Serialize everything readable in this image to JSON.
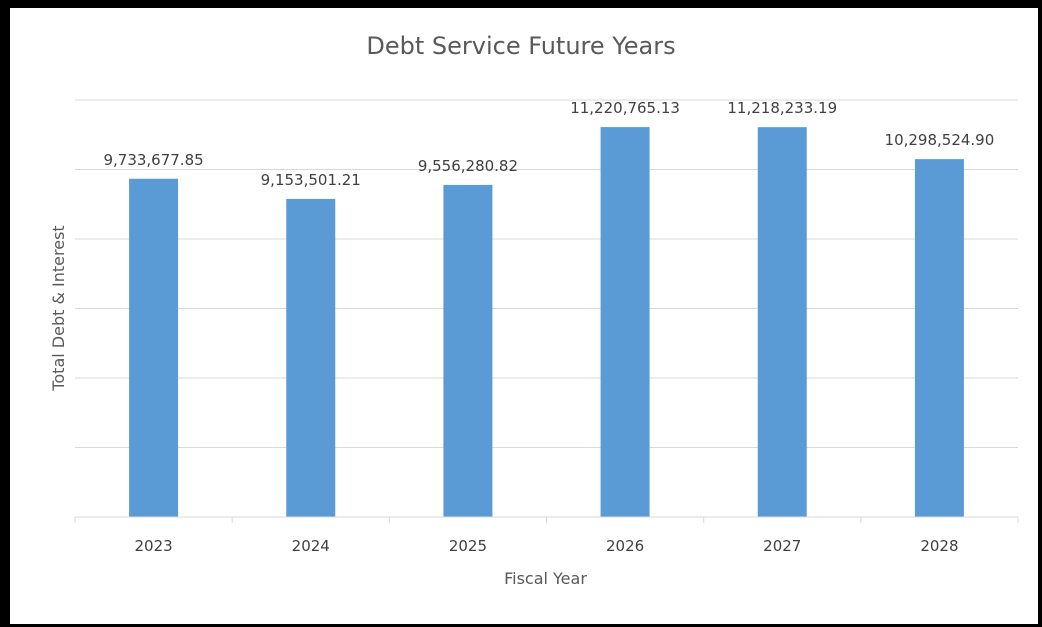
{
  "chart_data": {
    "type": "bar",
    "title": "Debt Service Future Years",
    "xlabel": "Fiscal Year",
    "ylabel": "Total Debt & Interest",
    "categories": [
      "2023",
      "2024",
      "2025",
      "2026",
      "2027",
      "2028"
    ],
    "values": [
      9733677.85,
      9153501.21,
      9556280.82,
      11220765.13,
      11218233.19,
      10298524.9
    ],
    "data_labels": [
      "9,733,677.85",
      "9,153,501.21",
      "9,556,280.82",
      "11,220,765.13",
      "11,218,233.19",
      "10,298,524.90"
    ],
    "ylim": [
      0,
      12000000
    ],
    "grid": true,
    "show_y_tick_labels": false,
    "bar_color": "#5b9bd5",
    "gridline_color": "#d9d9d9"
  }
}
